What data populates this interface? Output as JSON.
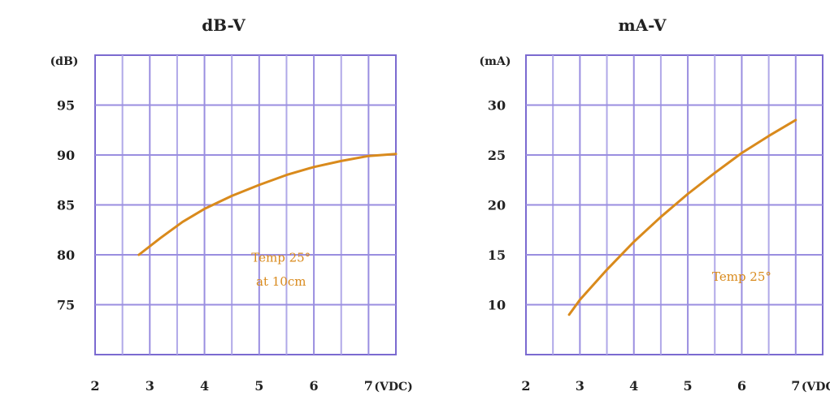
{
  "chart_data": [
    {
      "type": "line",
      "title": "dB-V",
      "y_unit_label": "(dB)",
      "x_unit_label": "(VDC)",
      "xlim": [
        2,
        7.5
      ],
      "ylim": [
        70,
        100
      ],
      "x_ticks": [
        2,
        3,
        4,
        5,
        6,
        7
      ],
      "x_tick_labels": [
        "2",
        "3",
        "4",
        "5",
        "6",
        "7"
      ],
      "y_ticks": [
        75,
        80,
        85,
        90,
        95
      ],
      "y_tick_labels": [
        "75",
        "80",
        "85",
        "90",
        "95"
      ],
      "grid": true,
      "series": [
        {
          "color": "#d98a1c",
          "x": [
            2.8,
            3.2,
            3.6,
            4.0,
            4.5,
            5.0,
            5.5,
            6.0,
            6.5,
            7.0,
            7.5
          ],
          "y": [
            80.0,
            81.7,
            83.3,
            84.6,
            85.9,
            87.0,
            88.0,
            88.8,
            89.4,
            89.9,
            90.1
          ]
        }
      ],
      "annotations": [
        "Temp 25°",
        "at 10cm"
      ]
    },
    {
      "type": "line",
      "title": "mA-V",
      "y_unit_label": "(mA)",
      "x_unit_label": "(VDC)",
      "xlim": [
        2,
        7.5
      ],
      "ylim": [
        5,
        35
      ],
      "x_ticks": [
        2,
        3,
        4,
        5,
        6,
        7
      ],
      "x_tick_labels": [
        "2",
        "3",
        "4",
        "5",
        "6",
        "7"
      ],
      "y_ticks": [
        10,
        15,
        20,
        25,
        30
      ],
      "y_tick_labels": [
        "10",
        "15",
        "20",
        "25",
        "30"
      ],
      "grid": true,
      "series": [
        {
          "color": "#d98a1c",
          "x": [
            2.8,
            3.0,
            3.5,
            4.0,
            4.5,
            5.0,
            5.5,
            6.0,
            6.5,
            7.0
          ],
          "y": [
            9.0,
            10.5,
            13.5,
            16.3,
            18.8,
            21.1,
            23.2,
            25.2,
            26.9,
            28.5
          ]
        }
      ],
      "annotations": [
        "Temp 25°"
      ]
    }
  ]
}
